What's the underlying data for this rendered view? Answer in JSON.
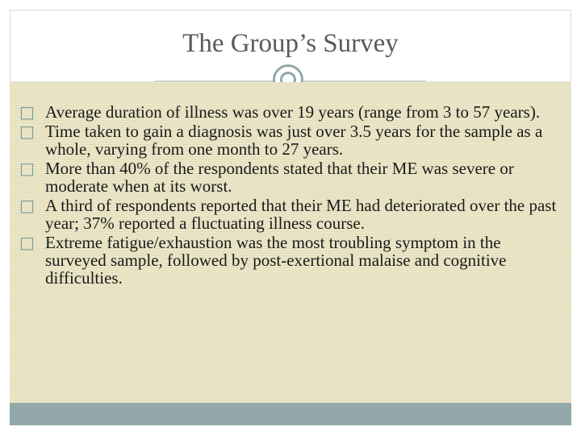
{
  "title": "The Group’s Survey",
  "bullet_marker": "□",
  "bullets": [
    "Average duration of illness was over 19 years (range from 3 to 57 years).",
    "Time taken to gain a diagnosis was just over 3.5 years for the sample as a whole, varying from one month to 27 years.",
    "More than 40% of the respondents stated that their ME was severe or moderate when at its worst.",
    "A third of respondents reported that their ME had deteriorated over the past year; 37% reported a fluctuating illness course.",
    "Extreme fatigue/exhaustion was the most troubling symptom in the surveyed sample, followed by post-exertional malaise and cognitive difficulties."
  ],
  "colors": {
    "body_background": "#ebe6c8",
    "accent": "#93a8a8",
    "title_text": "#5a5a5a"
  }
}
